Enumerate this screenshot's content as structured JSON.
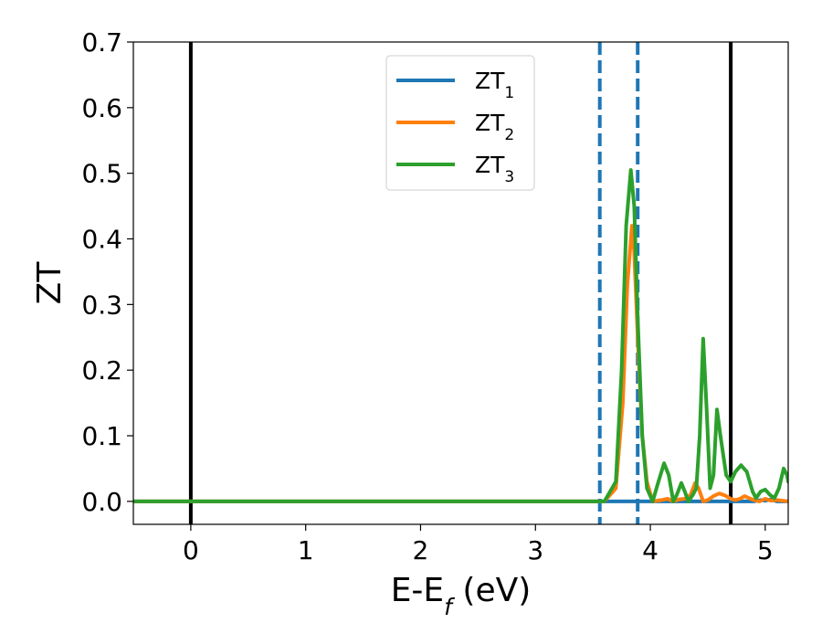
{
  "chart_data": {
    "type": "line",
    "title": "",
    "xlabel": {
      "main": "E-E",
      "sub": "f",
      "unit": " (eV)"
    },
    "ylabel": "ZT",
    "xlim": [
      -0.5,
      5.2
    ],
    "ylim": [
      -0.035,
      0.7
    ],
    "xticks": [
      0,
      1,
      2,
      3,
      4,
      5
    ],
    "xtick_labels": [
      "0",
      "1",
      "2",
      "3",
      "4",
      "5"
    ],
    "yticks": [
      0.0,
      0.1,
      0.2,
      0.3,
      0.4,
      0.5,
      0.6,
      0.7
    ],
    "ytick_labels": [
      "0.0",
      "0.1",
      "0.2",
      "0.3",
      "0.4",
      "0.5",
      "0.6",
      "0.7"
    ],
    "grid": false,
    "legend": {
      "placement": "upper-center"
    },
    "vlines": [
      {
        "x": 0.0,
        "color": "#000000",
        "style": "solid"
      },
      {
        "x": 4.7,
        "color": "#000000",
        "style": "solid"
      },
      {
        "x": 3.56,
        "color": "#1f77b4",
        "style": "dashed"
      },
      {
        "x": 3.89,
        "color": "#1f77b4",
        "style": "dashed"
      }
    ],
    "series": [
      {
        "name": "ZT",
        "sub": "1",
        "color": "#1f77b4",
        "points": [
          [
            -0.5,
            0
          ],
          [
            3.56,
            0
          ],
          [
            4.9,
            0
          ],
          [
            4.96,
            0.002
          ],
          [
            5.0,
            0.001
          ],
          [
            5.05,
            0.003
          ],
          [
            5.1,
            0.0
          ],
          [
            5.2,
            0.0
          ]
        ]
      },
      {
        "name": "ZT",
        "sub": "2",
        "color": "#ff7f0e",
        "points": [
          [
            -0.5,
            0
          ],
          [
            3.6,
            0
          ],
          [
            3.7,
            0.02
          ],
          [
            3.76,
            0.15
          ],
          [
            3.8,
            0.33
          ],
          [
            3.84,
            0.42
          ],
          [
            3.86,
            0.38
          ],
          [
            3.89,
            0.25
          ],
          [
            3.93,
            0.1
          ],
          [
            3.97,
            0.03
          ],
          [
            4.02,
            0.0
          ],
          [
            4.1,
            0.002
          ],
          [
            4.15,
            0.004
          ],
          [
            4.2,
            0.0
          ],
          [
            4.25,
            0.003
          ],
          [
            4.3,
            0.004
          ],
          [
            4.35,
            0.01
          ],
          [
            4.39,
            0.028
          ],
          [
            4.42,
            0.02
          ],
          [
            4.46,
            0.0
          ],
          [
            4.5,
            0.002
          ],
          [
            4.55,
            0.008
          ],
          [
            4.6,
            0.012
          ],
          [
            4.65,
            0.009
          ],
          [
            4.7,
            0.004
          ],
          [
            4.74,
            0.002
          ],
          [
            4.78,
            0.004
          ],
          [
            4.82,
            0.008
          ],
          [
            4.86,
            0.005
          ],
          [
            4.9,
            0.002
          ],
          [
            4.95,
            0.0
          ],
          [
            5.0,
            0.004
          ],
          [
            5.05,
            0.001
          ],
          [
            5.1,
            0.002
          ],
          [
            5.2,
            0.0
          ]
        ]
      },
      {
        "name": "ZT",
        "sub": "3",
        "color": "#2ca02c",
        "points": [
          [
            -0.5,
            0
          ],
          [
            3.6,
            0
          ],
          [
            3.7,
            0.03
          ],
          [
            3.75,
            0.2
          ],
          [
            3.79,
            0.42
          ],
          [
            3.83,
            0.505
          ],
          [
            3.86,
            0.45
          ],
          [
            3.89,
            0.28
          ],
          [
            3.93,
            0.1
          ],
          [
            3.97,
            0.02
          ],
          [
            4.02,
            0.0
          ],
          [
            4.07,
            0.03
          ],
          [
            4.12,
            0.058
          ],
          [
            4.16,
            0.04
          ],
          [
            4.2,
            0.0
          ],
          [
            4.23,
            0.01
          ],
          [
            4.27,
            0.028
          ],
          [
            4.3,
            0.015
          ],
          [
            4.33,
            0.0
          ],
          [
            4.37,
            0.01
          ],
          [
            4.4,
            0.02
          ],
          [
            4.43,
            0.1
          ],
          [
            4.46,
            0.248
          ],
          [
            4.49,
            0.14
          ],
          [
            4.52,
            0.02
          ],
          [
            4.55,
            0.04
          ],
          [
            4.58,
            0.14
          ],
          [
            4.61,
            0.1
          ],
          [
            4.66,
            0.04
          ],
          [
            4.7,
            0.03
          ],
          [
            4.74,
            0.045
          ],
          [
            4.79,
            0.055
          ],
          [
            4.84,
            0.045
          ],
          [
            4.89,
            0.015
          ],
          [
            4.92,
            0.005
          ],
          [
            4.96,
            0.015
          ],
          [
            5.0,
            0.018
          ],
          [
            5.04,
            0.01
          ],
          [
            5.08,
            0.005
          ],
          [
            5.12,
            0.02
          ],
          [
            5.16,
            0.05
          ],
          [
            5.19,
            0.04
          ],
          [
            5.2,
            0.03
          ]
        ]
      }
    ]
  }
}
